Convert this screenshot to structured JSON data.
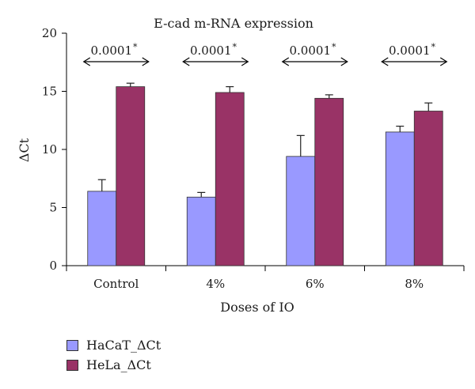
{
  "chart_data": {
    "type": "bar",
    "title": "E-cad m-RNA expression",
    "xlabel": "Doses of IO",
    "ylabel": "ΔCt",
    "ylim": [
      0,
      20
    ],
    "yticks": [
      0,
      5,
      10,
      15,
      20
    ],
    "categories": [
      "Control",
      "4%",
      "6%",
      "8%"
    ],
    "series": [
      {
        "name": "HaCaT_ΔCt",
        "color": "#9999ff",
        "values": [
          6.4,
          5.9,
          9.4,
          11.5
        ],
        "errors": [
          1.0,
          0.4,
          1.8,
          0.5
        ]
      },
      {
        "name": "HeLa_ΔCt",
        "color": "#993366",
        "values": [
          15.4,
          14.9,
          14.4,
          13.3
        ],
        "errors": [
          0.3,
          0.5,
          0.3,
          0.7
        ]
      }
    ],
    "annotations": [
      "0.0001",
      "0.0001",
      "0.0001",
      "0.0001"
    ],
    "annotation_marker": "*",
    "grid": false,
    "legend_position": "bottom-left"
  }
}
